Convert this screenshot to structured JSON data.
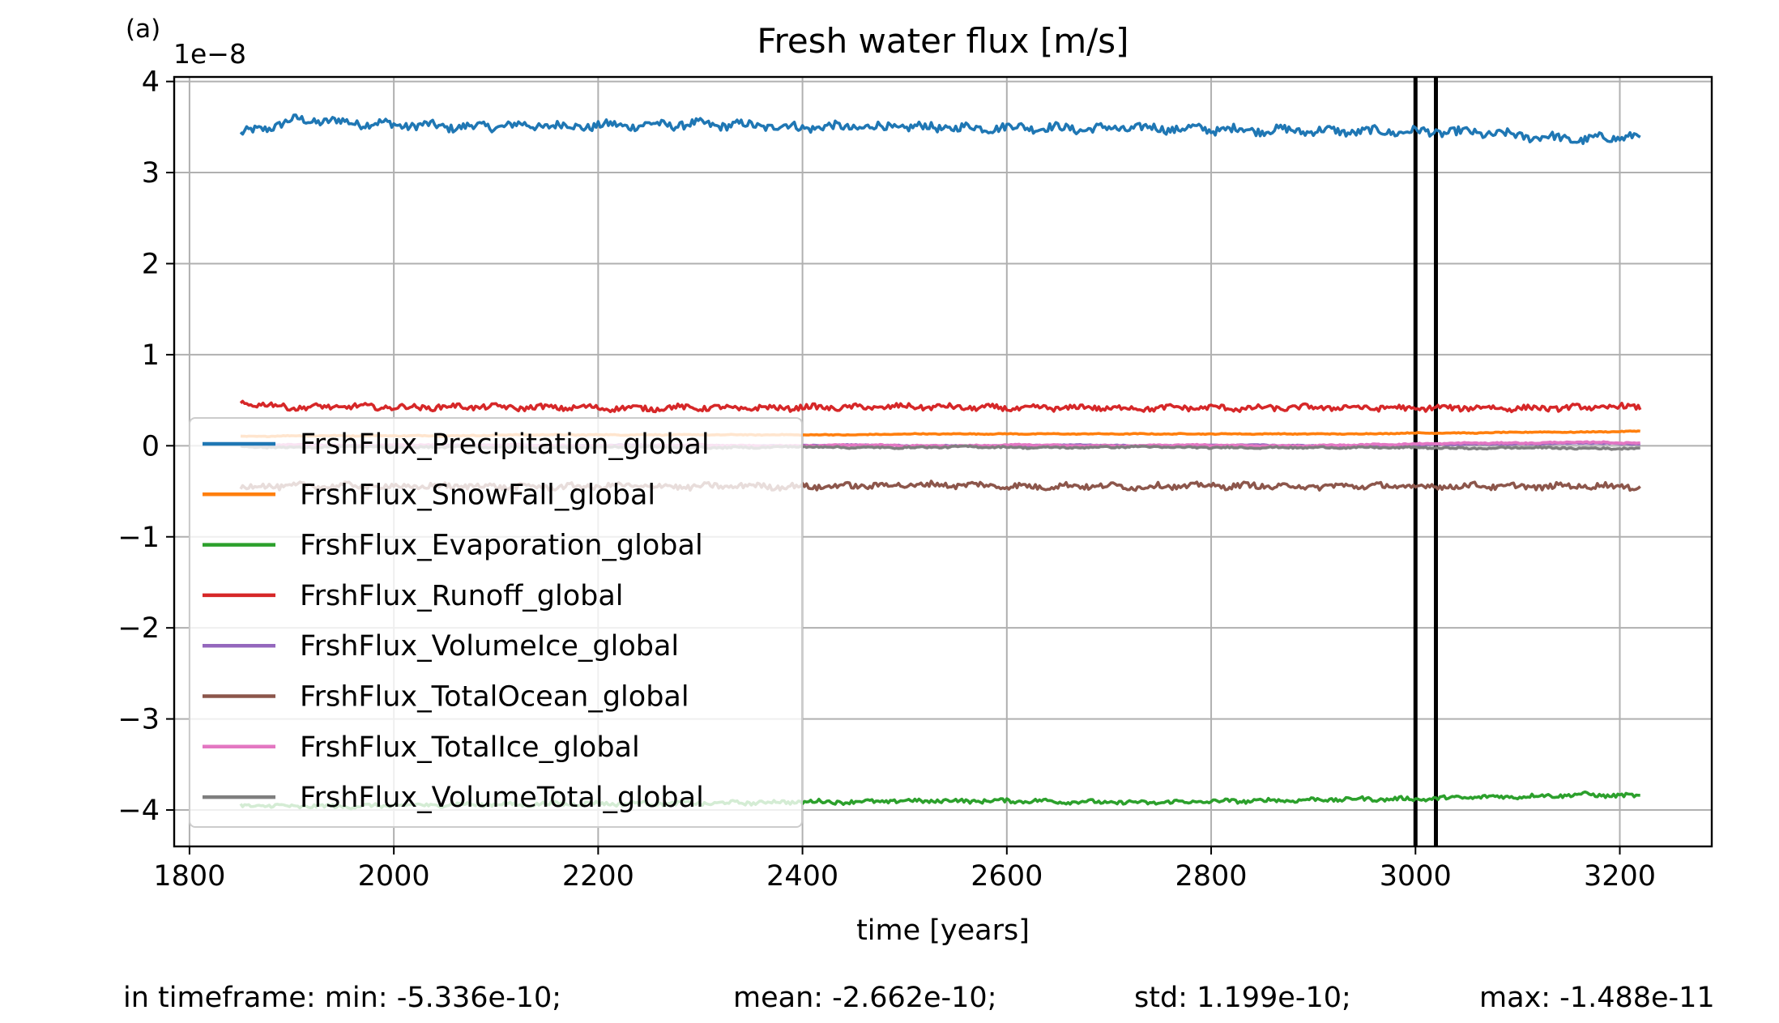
{
  "panel_label": "(a)",
  "chart_data": {
    "type": "line",
    "title": "Fresh water flux [m/s]",
    "xlabel": "time [years]",
    "ylabel": "",
    "y_offset_label": "1e−8",
    "xlim": [
      1785,
      3290
    ],
    "ylim": [
      -4.4,
      4.05
    ],
    "xticks": [
      1800,
      2000,
      2200,
      2400,
      2600,
      2800,
      3000,
      3200
    ],
    "yticks": [
      -4,
      -3,
      -2,
      -1,
      0,
      1,
      2,
      3,
      4
    ],
    "ytick_labels": [
      "−4",
      "−3",
      "−2",
      "−1",
      "0",
      "1",
      "2",
      "3",
      "4"
    ],
    "grid": true,
    "legend_position": "center-left",
    "x_start": 1850,
    "x_end": 3220,
    "vlines": [
      3000,
      3020
    ],
    "series": [
      {
        "name": "FrshFlux_Precipitation_global",
        "color": "#1f77b4",
        "values": [
          3.42,
          3.58,
          3.55,
          3.52,
          3.5,
          3.52,
          3.51,
          3.52,
          3.53,
          3.52,
          3.5,
          3.5,
          3.5,
          3.49,
          3.5,
          3.48,
          3.49,
          3.48,
          3.47,
          3.46,
          3.45,
          3.45,
          3.44,
          3.4,
          3.36,
          3.41
        ]
      },
      {
        "name": "FrshFlux_SnowFall_global",
        "color": "#ff7f0e",
        "values": [
          0.1,
          0.11,
          0.11,
          0.11,
          0.11,
          0.12,
          0.12,
          0.12,
          0.12,
          0.12,
          0.12,
          0.12,
          0.13,
          0.13,
          0.13,
          0.13,
          0.13,
          0.13,
          0.13,
          0.13,
          0.13,
          0.14,
          0.14,
          0.15,
          0.15,
          0.16
        ]
      },
      {
        "name": "FrshFlux_Evaporation_global",
        "color": "#2ca02c",
        "values": [
          -3.95,
          -3.96,
          -3.96,
          -3.95,
          -3.94,
          -3.94,
          -3.93,
          -3.93,
          -3.93,
          -3.92,
          -3.91,
          -3.91,
          -3.9,
          -3.9,
          -3.9,
          -3.91,
          -3.92,
          -3.91,
          -3.9,
          -3.89,
          -3.88,
          -3.88,
          -3.86,
          -3.85,
          -3.83,
          -3.85
        ]
      },
      {
        "name": "FrshFlux_Runoff_global",
        "color": "#d62728",
        "values": [
          0.47,
          0.42,
          0.43,
          0.42,
          0.43,
          0.42,
          0.42,
          0.41,
          0.42,
          0.41,
          0.42,
          0.42,
          0.43,
          0.42,
          0.41,
          0.42,
          0.41,
          0.42,
          0.41,
          0.42,
          0.42,
          0.41,
          0.42,
          0.41,
          0.42,
          0.43
        ]
      },
      {
        "name": "FrshFlux_VolumeIce_global",
        "color": "#9467bd",
        "values": [
          0.0,
          0.01,
          0.0,
          0.0,
          0.01,
          0.0,
          0.0,
          0.01,
          0.0,
          0.0,
          0.0,
          0.01,
          0.0,
          0.0,
          0.0,
          0.01,
          0.0,
          0.0,
          0.01,
          0.0,
          0.0,
          0.01,
          0.02,
          0.02,
          0.03,
          0.02
        ]
      },
      {
        "name": "FrshFlux_TotalOcean_global",
        "color": "#8c564b",
        "values": [
          -0.45,
          -0.44,
          -0.44,
          -0.45,
          -0.44,
          -0.45,
          -0.45,
          -0.44,
          -0.45,
          -0.44,
          -0.45,
          -0.44,
          -0.43,
          -0.43,
          -0.45,
          -0.44,
          -0.45,
          -0.44,
          -0.44,
          -0.45,
          -0.44,
          -0.45,
          -0.44,
          -0.45,
          -0.44,
          -0.45
        ]
      },
      {
        "name": "FrshFlux_TotalIce_global",
        "color": "#e377c2",
        "values": [
          0.0,
          0.01,
          0.0,
          0.01,
          0.0,
          0.01,
          0.0,
          0.0,
          0.01,
          0.0,
          0.0,
          0.01,
          0.0,
          0.0,
          0.01,
          0.0,
          0.0,
          0.01,
          0.0,
          0.0,
          0.01,
          0.02,
          0.03,
          0.03,
          0.04,
          0.03
        ]
      },
      {
        "name": "FrshFlux_VolumeTotal_global",
        "color": "#7f7f7f",
        "values": [
          -0.01,
          -0.02,
          -0.01,
          -0.02,
          -0.01,
          -0.02,
          -0.02,
          -0.01,
          -0.02,
          -0.02,
          -0.01,
          -0.02,
          -0.02,
          -0.01,
          -0.02,
          -0.02,
          -0.01,
          -0.02,
          -0.02,
          -0.02,
          -0.02,
          -0.02,
          -0.03,
          -0.02,
          -0.03,
          -0.03
        ]
      }
    ]
  },
  "stats": {
    "min": "in timeframe: min: -5.336e-10;",
    "mean": "mean: -2.662e-10;",
    "std": "std: 1.199e-10;",
    "max": "max: -1.488e-11"
  }
}
